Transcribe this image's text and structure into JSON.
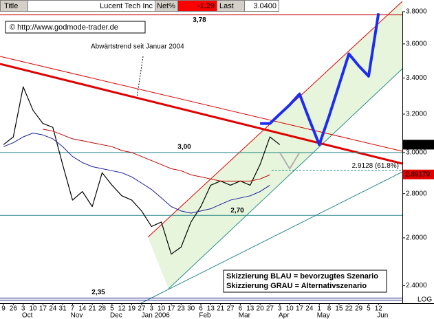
{
  "chart_data": {
    "type": "line",
    "header": {
      "title": "Title",
      "symbol": "Lucent Tech Inc",
      "net_label": "Net%",
      "net": "-1.29",
      "last_label": "Last",
      "last": "3.0400"
    },
    "copyright": "© http://www.godmode-trader.de",
    "annotation": "Abwärtstrend seit Januar 2004",
    "legend_lines": [
      "Skizzierung BLAU = bevorzugtes Szenario",
      "Skizzierung GRAU = Alternativszenario"
    ],
    "scale_label": "LOG",
    "log": true,
    "categories": [
      "9",
      "26",
      "3",
      "10",
      "17",
      "24",
      "31",
      "7",
      "14",
      "21",
      "28",
      "5",
      "12",
      "19",
      "27",
      "3",
      "10",
      "17",
      "23",
      "30",
      "6",
      "13",
      "21",
      "27",
      "6",
      "13",
      "20",
      "27",
      "3",
      "10",
      "17",
      "24",
      "1",
      "8",
      "15",
      "22",
      "29",
      "5",
      "12"
    ],
    "category_groups": [
      null,
      null,
      "Oct",
      null,
      null,
      null,
      null,
      "Nov",
      null,
      null,
      null,
      "Dec",
      null,
      null,
      null,
      "Jan 2006",
      null,
      null,
      null,
      null,
      "Feb",
      null,
      null,
      null,
      "Mar",
      null,
      null,
      null,
      "Apr",
      null,
      null,
      null,
      "May",
      null,
      null,
      null,
      null,
      null,
      "Jun"
    ],
    "series": [
      {
        "color": "#000000",
        "width": 1.2,
        "values": [
          3.04,
          3.08,
          3.35,
          3.22,
          3.15,
          3.13,
          2.94,
          2.77,
          2.81,
          2.74,
          2.9,
          2.84,
          2.79,
          2.77,
          2.72,
          2.65,
          2.67,
          2.53,
          2.56,
          2.67,
          2.74,
          2.84,
          2.86,
          2.84,
          2.86,
          2.84,
          2.94,
          3.08,
          3.04,
          null,
          null,
          null,
          null,
          null,
          null,
          null,
          null,
          null,
          null
        ]
      },
      {
        "color": "#1a1aa0",
        "width": 1,
        "values": [
          3.03,
          3.05,
          3.08,
          3.1,
          3.09,
          3.07,
          3.03,
          2.98,
          2.95,
          2.93,
          2.92,
          2.91,
          2.9,
          2.88,
          2.85,
          2.82,
          2.78,
          2.74,
          2.72,
          2.71,
          2.72,
          2.73,
          2.75,
          2.77,
          2.78,
          2.79,
          2.81,
          2.84,
          null,
          null,
          null,
          null,
          null,
          null,
          null,
          null,
          null,
          null,
          null
        ]
      },
      {
        "color": "#c00000",
        "width": 1,
        "values": [
          null,
          null,
          null,
          null,
          3.12,
          3.11,
          3.09,
          3.07,
          3.06,
          3.05,
          3.04,
          3.03,
          3.01,
          3.0,
          2.98,
          2.96,
          2.94,
          2.92,
          2.91,
          2.89,
          2.88,
          2.87,
          2.86,
          2.86,
          2.86,
          2.86,
          2.87,
          2.89,
          null,
          null,
          null,
          null,
          null,
          null,
          null,
          null,
          null,
          null,
          null
        ]
      },
      {
        "color": "#1c2cf0",
        "width": 4,
        "values": [
          null,
          null,
          null,
          null,
          null,
          null,
          null,
          null,
          null,
          null,
          null,
          null,
          null,
          null,
          null,
          null,
          null,
          null,
          null,
          null,
          null,
          null,
          null,
          null,
          null,
          null,
          3.15,
          3.15,
          3.2,
          3.25,
          3.31,
          3.17,
          3.04,
          3.19,
          3.36,
          3.54,
          3.47,
          3.41,
          3.79
        ]
      },
      {
        "color": "#b0b0b0",
        "width": 2,
        "values": [
          null,
          null,
          null,
          null,
          null,
          null,
          null,
          null,
          null,
          null,
          null,
          null,
          null,
          null,
          null,
          null,
          null,
          null,
          null,
          null,
          null,
          null,
          null,
          null,
          null,
          null,
          null,
          null,
          3.0,
          2.92,
          3.0,
          null,
          null,
          null,
          null,
          null,
          null,
          null,
          null
        ]
      }
    ],
    "levels": [
      {
        "value": 3.78,
        "label": "3,78",
        "color": "#c00000"
      },
      {
        "value": 3.0,
        "label": "3,00",
        "color": "#2a8a8a"
      },
      {
        "value": 2.7,
        "label": "2,70",
        "color": "#2a8a8a"
      },
      {
        "value": 2.35,
        "label": "2,35",
        "color": "#1a1a80"
      }
    ],
    "fib": {
      "value": 2.9128,
      "label": "2.9128 (61.8%)",
      "color": "#2a8a8a"
    },
    "price_flags": [
      {
        "value": 3.04,
        "label": "3.0400",
        "color": "#000000"
      },
      {
        "value": 2.89179,
        "label": "2.89179",
        "color": "#e00000"
      }
    ],
    "ylim": [
      2.33,
      3.8
    ],
    "yticks": [
      {
        "value": 2.4,
        "label": "2.4000"
      },
      {
        "value": 2.6,
        "label": "2.6000"
      },
      {
        "value": 2.8,
        "label": "2.8000"
      },
      {
        "value": 3.0,
        "label": "3.0000"
      },
      {
        "value": 3.2,
        "label": "3.2000"
      },
      {
        "value": 3.4,
        "label": "3.4000"
      },
      {
        "value": 3.6,
        "label": "3.6000"
      },
      {
        "value": 3.8,
        "label": "3.8000"
      }
    ]
  }
}
